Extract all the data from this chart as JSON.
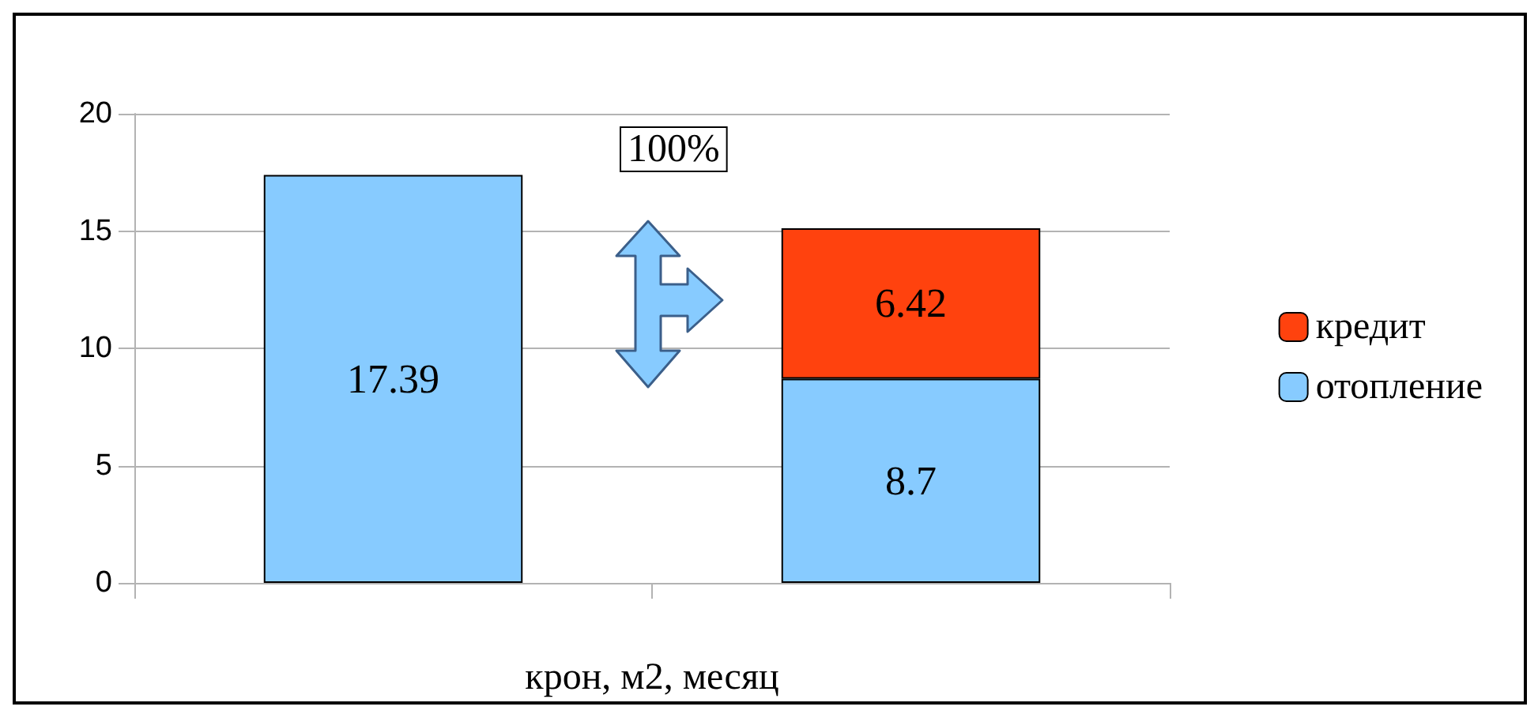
{
  "chart_data": {
    "type": "bar",
    "stacked": true,
    "xlabel": "крон, м2, месяц",
    "categories": [
      null,
      null
    ],
    "series": [
      {
        "name": "отопление",
        "color": "#87cbff",
        "values": [
          17.39,
          8.7
        ]
      },
      {
        "name": "кредит",
        "color": "#ff420e",
        "values": [
          null,
          6.42
        ]
      }
    ],
    "ylim": [
      0,
      20
    ],
    "yticks": [
      0,
      5,
      10,
      15,
      20
    ],
    "grid": "y",
    "legend": "right",
    "data_labels": true,
    "annotations": [
      "100%"
    ]
  }
}
